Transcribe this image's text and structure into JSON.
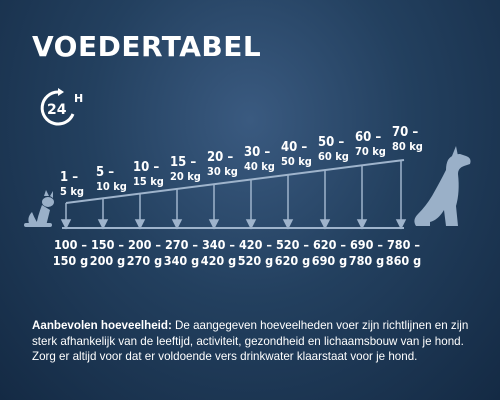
{
  "title": "VOEDERTABEL",
  "clock_badge": {
    "number": "24",
    "suffix": "H",
    "icon": "24-hour-icon"
  },
  "weight_ranges": [
    {
      "range": "1 –",
      "unit": "5 kg"
    },
    {
      "range": "5 –",
      "unit": "10 kg"
    },
    {
      "range": "10 –",
      "unit": "15 kg"
    },
    {
      "range": "15 –",
      "unit": "20 kg"
    },
    {
      "range": "20 –",
      "unit": "30 kg"
    },
    {
      "range": "30 –",
      "unit": "40 kg"
    },
    {
      "range": "40 –",
      "unit": "50 kg"
    },
    {
      "range": "50 –",
      "unit": "60 kg"
    },
    {
      "range": "60 –",
      "unit": "70 kg"
    },
    {
      "range": "70 –",
      "unit": "80 kg"
    }
  ],
  "gram_amounts": [
    {
      "top": "100 –",
      "bottom": "150 g"
    },
    {
      "top": "150 –",
      "bottom": "200 g"
    },
    {
      "top": "200 –",
      "bottom": "270 g"
    },
    {
      "top": "270 –",
      "bottom": "340 g"
    },
    {
      "top": "340 –",
      "bottom": "420 g"
    },
    {
      "top": "420 –",
      "bottom": "520 g"
    },
    {
      "top": "520 –",
      "bottom": "620 g"
    },
    {
      "top": "620 –",
      "bottom": "690 g"
    },
    {
      "top": "690 –",
      "bottom": "780 g"
    },
    {
      "top": "780 –",
      "bottom": "860 g"
    }
  ],
  "footer": {
    "label": "Aanbevolen hoeveelheid:",
    "text": " De aangegeven hoeveelheden voer zijn richtlijnen en zijn sterk afhankelijk van de leeftijd, activiteit, gezondheid en lichaamsbouw van je hond. Zorg er altijd voor dat er voldoende vers drinkwater klaarstaat voor je hond."
  },
  "colors": {
    "background": "#23405f",
    "line": "#9fb4cc",
    "dog": "#9ab0c8",
    "text": "#ffffff"
  }
}
